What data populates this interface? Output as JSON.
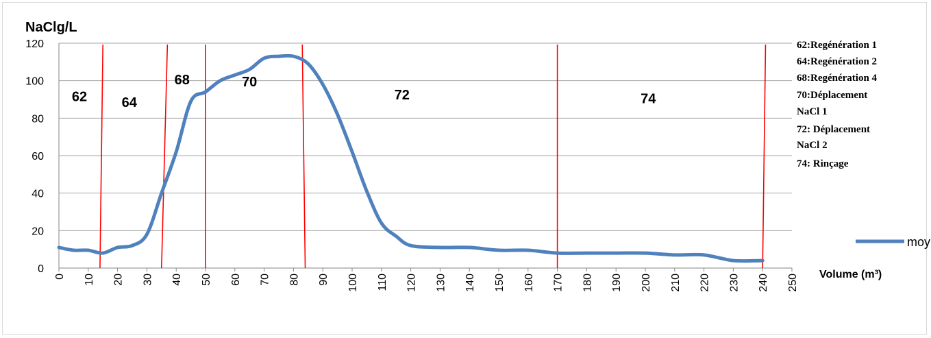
{
  "chart_data": {
    "type": "line",
    "ylabel": "NaClg/L",
    "xlabel": "Volume (m³)",
    "ylim": [
      0,
      120
    ],
    "xlim": [
      0,
      250
    ],
    "y_ticks": [
      "0",
      "20",
      "40",
      "60",
      "80",
      "100",
      "120"
    ],
    "x_ticks": [
      "0",
      "10",
      "20",
      "30",
      "40",
      "50",
      "60",
      "70",
      "80",
      "90",
      "100",
      "110",
      "120",
      "130",
      "140",
      "150",
      "160",
      "170",
      "180",
      "190",
      "200",
      "210",
      "220",
      "230",
      "240",
      "250"
    ],
    "grid": "horizontal",
    "legend_position": "right",
    "series": [
      {
        "name": "moyNaCl",
        "color": "#4f81bd",
        "x": [
          0,
          5,
          10,
          15,
          20,
          25,
          30,
          35,
          40,
          45,
          50,
          55,
          60,
          65,
          70,
          75,
          80,
          85,
          90,
          95,
          100,
          105,
          110,
          115,
          120,
          130,
          140,
          150,
          160,
          170,
          180,
          190,
          200,
          210,
          220,
          230,
          240
        ],
        "y": [
          11,
          9.5,
          9.5,
          8,
          11,
          12,
          18,
          40,
          62,
          89,
          94,
          100,
          103,
          106,
          112,
          113,
          113,
          109,
          98,
          82,
          62,
          41,
          24,
          17,
          12,
          11,
          11,
          9.5,
          9.5,
          8,
          8,
          8,
          8,
          7,
          7,
          4,
          4
        ]
      }
    ],
    "separators": [
      {
        "x_top": 15,
        "x_bottom": 14
      },
      {
        "x_top": 37,
        "x_bottom": 35
      },
      {
        "x_top": 50,
        "x_bottom": 50
      },
      {
        "x_top": 83,
        "x_bottom": 84
      },
      {
        "x_top": 170,
        "x_bottom": 170
      },
      {
        "x_top": 241,
        "x_bottom": 240
      }
    ],
    "zone_labels": [
      {
        "text": "62",
        "x": 7,
        "y": 89
      },
      {
        "text": "64",
        "x": 24,
        "y": 86
      },
      {
        "text": "68",
        "x": 42,
        "y": 98
      },
      {
        "text": "70",
        "x": 65,
        "y": 97
      },
      {
        "text": "72",
        "x": 117,
        "y": 90
      },
      {
        "text": "74",
        "x": 201,
        "y": 88
      }
    ],
    "phase_legend": [
      "62:Regénération 1",
      "64:Regénération 2",
      "68:Regénération 4",
      "70:Déplacement",
      "NaCl 1",
      "72: Déplacement",
      "NaCl 2",
      "74: Rinçage"
    ],
    "separator_color": "#ff0000",
    "grid_color": "#a6a6a6"
  }
}
